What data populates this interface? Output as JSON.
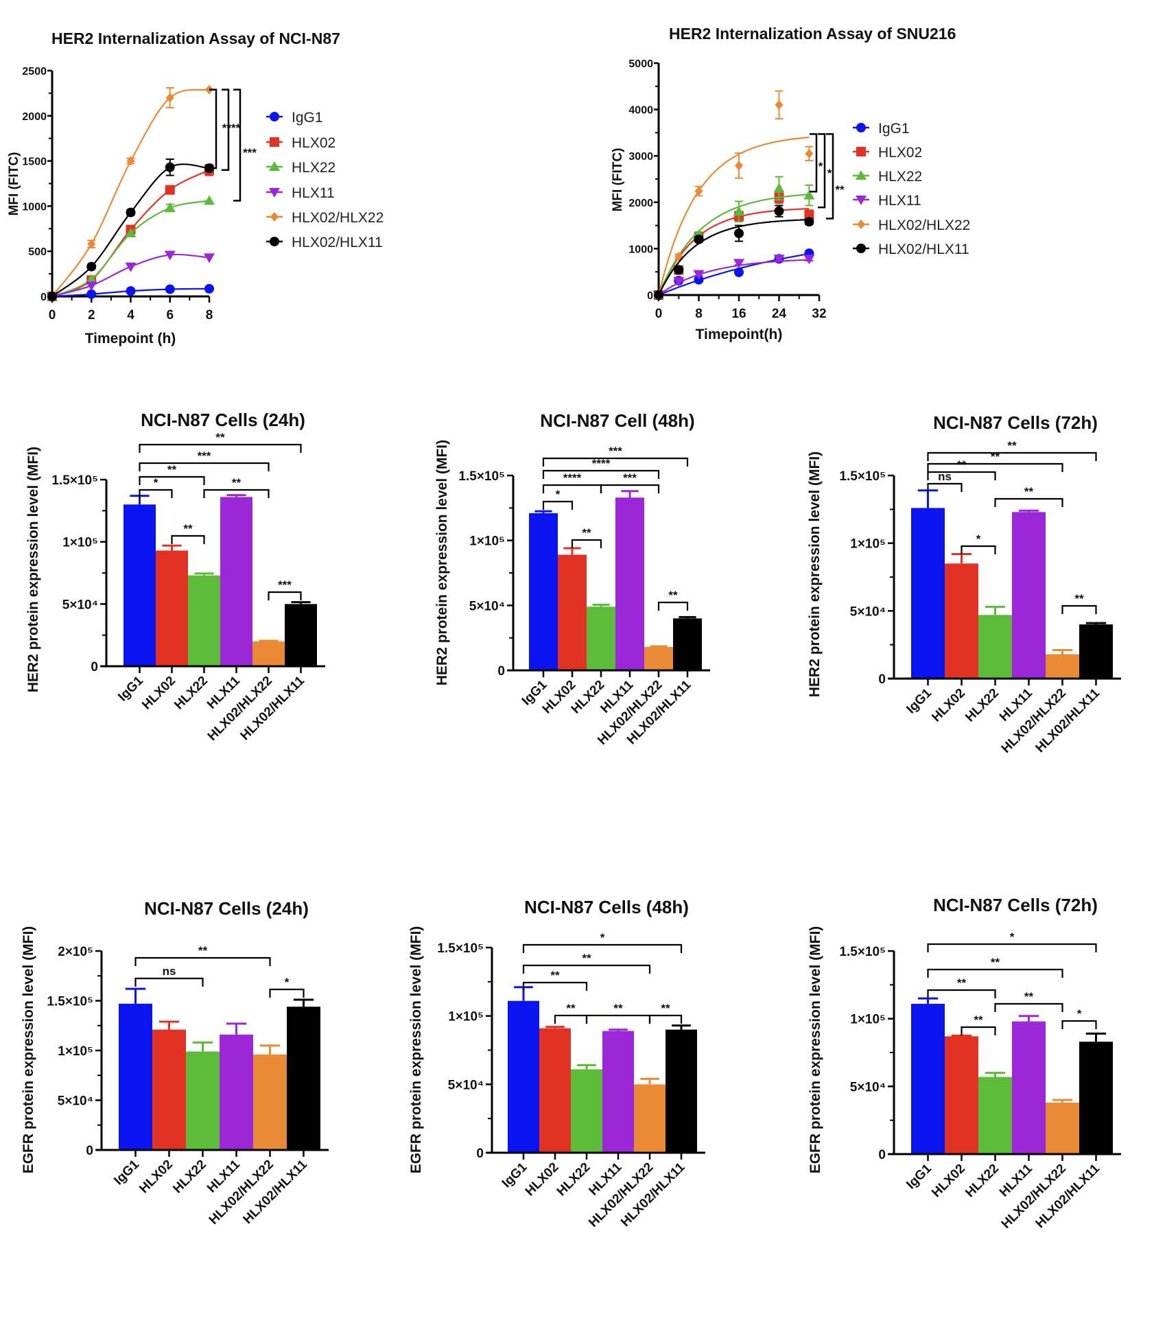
{
  "colors": {
    "IgG1": "#0a14f0",
    "HLX02": "#e23224",
    "HLX22": "#5dbb3a",
    "HLX11": "#9b27d8",
    "HLX02/HLX22": "#eb8a35",
    "HLX02/HLX11": "#000000"
  },
  "chart_data": [
    {
      "type": "line",
      "title": "HER2 Internalization Assay of NCI-N87",
      "xlabel": "Timepoint (h)",
      "ylabel": "MFI (FITC)",
      "xlim": [
        0,
        8
      ],
      "ylim": [
        0,
        2500
      ],
      "xticks": [
        "0",
        "2",
        "4",
        "6",
        "8"
      ],
      "yticks": [
        "0",
        "500",
        "1000",
        "1500",
        "2000",
        "2500"
      ],
      "legend": "right",
      "x": [
        0,
        2,
        4,
        6,
        8
      ],
      "series": [
        {
          "name": "IgG1",
          "marker": "circle",
          "values": [
            0,
            25,
            60,
            80,
            85
          ],
          "errors": [
            0,
            5,
            10,
            10,
            10
          ]
        },
        {
          "name": "HLX02",
          "marker": "square",
          "values": [
            0,
            180,
            740,
            1180,
            1400
          ],
          "errors": [
            0,
            20,
            30,
            40,
            60
          ]
        },
        {
          "name": "HLX22",
          "marker": "triangle-up",
          "values": [
            0,
            190,
            700,
            980,
            1060
          ],
          "errors": [
            0,
            15,
            20,
            40,
            20
          ]
        },
        {
          "name": "HLX11",
          "marker": "triangle-down",
          "values": [
            0,
            120,
            330,
            460,
            430
          ],
          "errors": [
            0,
            10,
            15,
            20,
            15
          ]
        },
        {
          "name": "HLX02/HLX22",
          "marker": "diamond",
          "values": [
            0,
            580,
            1500,
            2200,
            2290
          ],
          "errors": [
            0,
            40,
            30,
            110,
            20
          ]
        },
        {
          "name": "HLX02/HLX11",
          "marker": "circle",
          "values": [
            0,
            330,
            930,
            1430,
            1420
          ],
          "errors": [
            0,
            20,
            30,
            90,
            30
          ]
        }
      ],
      "significance": [
        {
          "label": "****",
          "from": "HLX02/HLX22",
          "to": "HLX02/HLX11"
        },
        {
          "label": "",
          "from": "HLX02/HLX22",
          "to": "HLX02"
        },
        {
          "label": "***",
          "from": "HLX02/HLX22",
          "to": "HLX22"
        }
      ]
    },
    {
      "type": "line",
      "title": "HER2 Internalization Assay of SNU216",
      "xlabel": "Timepoint(h)",
      "ylabel": "MFI (FITC)",
      "xlim": [
        0,
        32
      ],
      "ylim": [
        0,
        5000
      ],
      "xticks": [
        "0",
        "8",
        "16",
        "24",
        "32"
      ],
      "yticks": [
        "0",
        "1000",
        "2000",
        "3000",
        "4000",
        "5000"
      ],
      "legend": "right",
      "x": [
        0,
        4,
        8,
        16,
        24,
        30
      ],
      "series": [
        {
          "name": "IgG1",
          "marker": "circle",
          "values": [
            0,
            310,
            330,
            490,
            780,
            900
          ],
          "errors": [
            0,
            20,
            30,
            40,
            60,
            50
          ]
        },
        {
          "name": "HLX02",
          "marker": "square",
          "values": [
            0,
            540,
            1250,
            1700,
            2100,
            1730
          ],
          "errors": [
            0,
            40,
            60,
            100,
            120,
            100
          ]
        },
        {
          "name": "HLX22",
          "marker": "triangle-up",
          "values": [
            0,
            560,
            1300,
            1800,
            2300,
            2150
          ],
          "errors": [
            0,
            40,
            60,
            220,
            250,
            220
          ]
        },
        {
          "name": "HLX11",
          "marker": "triangle-down",
          "values": [
            0,
            300,
            450,
            690,
            780,
            780
          ],
          "errors": [
            0,
            20,
            30,
            40,
            40,
            40
          ]
        },
        {
          "name": "HLX02/HLX22",
          "marker": "diamond",
          "values": [
            0,
            830,
            2240,
            2790,
            4100,
            3050
          ],
          "errors": [
            0,
            50,
            100,
            270,
            300,
            150
          ]
        },
        {
          "name": "HLX02/HLX11",
          "marker": "circle",
          "values": [
            0,
            540,
            1200,
            1330,
            1810,
            1580
          ],
          "errors": [
            0,
            40,
            60,
            170,
            120,
            60
          ]
        }
      ],
      "significance": [
        {
          "label": "*",
          "from": "HLX02/HLX22",
          "to": "HLX22"
        },
        {
          "label": "*",
          "from": "HLX02/HLX22",
          "to": "HLX02"
        },
        {
          "label": "**",
          "from": "HLX02/HLX22",
          "to": "HLX02/HLX11"
        }
      ]
    },
    {
      "type": "bar",
      "title": "NCI-N87 Cells (24h)",
      "ylabel": "HER2  protein expression level (MFI)",
      "categories": [
        "IgG1",
        "HLX02",
        "HLX22",
        "HLX11",
        "HLX02/HLX22",
        "HLX02/HLX11"
      ],
      "values": [
        130000,
        93000,
        73000,
        136000,
        20000,
        50000
      ],
      "errors": [
        7000,
        4000,
        1500,
        1500,
        500,
        1500
      ],
      "ylim": [
        0,
        150000
      ],
      "yticks": [
        {
          "v": 0,
          "label": "0"
        },
        {
          "v": 50000,
          "label": "5×10⁴"
        },
        {
          "v": 100000,
          "label": "1×10⁵"
        },
        {
          "v": 150000,
          "label": "1.5×10⁵"
        }
      ],
      "significance": [
        {
          "pair": [
            0,
            5
          ],
          "label": "**"
        },
        {
          "pair": [
            0,
            4
          ],
          "label": "***"
        },
        {
          "pair": [
            0,
            2
          ],
          "label": "**"
        },
        {
          "pair": [
            0,
            1
          ],
          "label": "*"
        },
        {
          "pair": [
            2,
            4
          ],
          "label": "**"
        },
        {
          "pair": [
            1,
            2
          ],
          "label": "**"
        },
        {
          "pair": [
            4,
            5
          ],
          "label": "***"
        }
      ]
    },
    {
      "type": "bar",
      "title": "NCI-N87 Cell (48h)",
      "ylabel": "HER2  protein expression level (MFI)",
      "categories": [
        "IgG1",
        "HLX02",
        "HLX22",
        "HLX11",
        "HLX02/HLX22",
        "HLX02/HLX11"
      ],
      "values": [
        121000,
        89000,
        49000,
        133000,
        18000,
        40000
      ],
      "errors": [
        1500,
        5000,
        1500,
        5000,
        500,
        1000
      ],
      "ylim": [
        0,
        150000
      ],
      "yticks": [
        {
          "v": 0,
          "label": "0"
        },
        {
          "v": 50000,
          "label": "5×10⁴"
        },
        {
          "v": 100000,
          "label": "1×10⁵"
        },
        {
          "v": 150000,
          "label": "1.5×10⁵"
        }
      ],
      "significance": [
        {
          "pair": [
            0,
            5
          ],
          "label": "***"
        },
        {
          "pair": [
            0,
            4
          ],
          "label": "****"
        },
        {
          "pair": [
            0,
            2
          ],
          "label": "****"
        },
        {
          "pair": [
            2,
            4
          ],
          "label": "***"
        },
        {
          "pair": [
            0,
            1
          ],
          "label": "*"
        },
        {
          "pair": [
            1,
            2
          ],
          "label": "**"
        },
        {
          "pair": [
            4,
            5
          ],
          "label": "**"
        }
      ]
    },
    {
      "type": "bar",
      "title": "NCI-N87 Cells (72h)",
      "ylabel": "HER2  protein expression level (MFI)",
      "categories": [
        "IgG1",
        "HLX02",
        "HLX22",
        "HLX11",
        "HLX02/HLX22",
        "HLX02/HLX11"
      ],
      "values": [
        126000,
        85000,
        47000,
        123000,
        18000,
        40000
      ],
      "errors": [
        13000,
        7000,
        6000,
        1000,
        3000,
        1000
      ],
      "ylim": [
        0,
        150000
      ],
      "yticks": [
        {
          "v": 0,
          "label": "0"
        },
        {
          "v": 50000,
          "label": "5×10⁴"
        },
        {
          "v": 100000,
          "label": "1×10⁵"
        },
        {
          "v": 150000,
          "label": "1.5×10⁵"
        }
      ],
      "significance": [
        {
          "pair": [
            0,
            5
          ],
          "label": "**"
        },
        {
          "pair": [
            0,
            4
          ],
          "label": "**"
        },
        {
          "pair": [
            0,
            2
          ],
          "label": "**"
        },
        {
          "pair": [
            0,
            1
          ],
          "label": "ns"
        },
        {
          "pair": [
            2,
            4
          ],
          "label": "**"
        },
        {
          "pair": [
            1,
            2
          ],
          "label": "*"
        },
        {
          "pair": [
            4,
            5
          ],
          "label": "**"
        }
      ]
    },
    {
      "type": "bar",
      "title": "NCI-N87 Cells (24h)",
      "ylabel": "EGFR protein expression level (MFI)",
      "categories": [
        "IgG1",
        "HLX02",
        "HLX22",
        "HLX11",
        "HLX02/HLX22",
        "HLX02/HLX11"
      ],
      "values": [
        147000,
        121000,
        99000,
        116000,
        96000,
        144000
      ],
      "errors": [
        15000,
        8000,
        9000,
        11000,
        9000,
        7000
      ],
      "ylim": [
        0,
        200000
      ],
      "yticks": [
        {
          "v": 0,
          "label": "0"
        },
        {
          "v": 50000,
          "label": "5×10⁴"
        },
        {
          "v": 100000,
          "label": "1×10⁵"
        },
        {
          "v": 150000,
          "label": "1.5×10⁵"
        },
        {
          "v": 200000,
          "label": "2×10⁵"
        }
      ],
      "significance": [
        {
          "pair": [
            0,
            4
          ],
          "label": "**"
        },
        {
          "pair": [
            0,
            2
          ],
          "label": "ns"
        },
        {
          "pair": [
            4,
            5
          ],
          "label": "*"
        }
      ]
    },
    {
      "type": "bar",
      "title": "NCI-N87 Cells (48h)",
      "ylabel": "EGFR protein expression level (MFI)",
      "categories": [
        "IgG1",
        "HLX02",
        "HLX22",
        "HLX11",
        "HLX02/HLX22",
        "HLX02/HLX11"
      ],
      "values": [
        111000,
        91000,
        61000,
        89000,
        50000,
        90000
      ],
      "errors": [
        10000,
        1000,
        3000,
        1000,
        4000,
        3000
      ],
      "ylim": [
        0,
        150000
      ],
      "yticks": [
        {
          "v": 0,
          "label": "0"
        },
        {
          "v": 50000,
          "label": "5×10⁴"
        },
        {
          "v": 100000,
          "label": "1×10⁵"
        },
        {
          "v": 150000,
          "label": "1.5×10⁵"
        }
      ],
      "significance": [
        {
          "pair": [
            0,
            5
          ],
          "label": "*"
        },
        {
          "pair": [
            0,
            4
          ],
          "label": "**"
        },
        {
          "pair": [
            0,
            2
          ],
          "label": "**"
        },
        {
          "pair": [
            1,
            2
          ],
          "label": "**"
        },
        {
          "pair": [
            2,
            4
          ],
          "label": "**"
        },
        {
          "pair": [
            4,
            5
          ],
          "label": "**"
        }
      ]
    },
    {
      "type": "bar",
      "title": "NCI-N87 Cells (72h)",
      "ylabel": "EGFR protein expression level (MFI)",
      "categories": [
        "IgG1",
        "HLX02",
        "HLX22",
        "HLX11",
        "HLX02/HLX22",
        "HLX02/HLX11"
      ],
      "values": [
        111000,
        87000,
        57000,
        98000,
        38000,
        83000
      ],
      "errors": [
        4000,
        500,
        3000,
        4000,
        2000,
        6000
      ],
      "ylim": [
        0,
        150000
      ],
      "yticks": [
        {
          "v": 0,
          "label": "0"
        },
        {
          "v": 50000,
          "label": "5×10⁴"
        },
        {
          "v": 100000,
          "label": "1×10⁵"
        },
        {
          "v": 150000,
          "label": "1.5×10⁵"
        }
      ],
      "significance": [
        {
          "pair": [
            0,
            5
          ],
          "label": "*"
        },
        {
          "pair": [
            0,
            4
          ],
          "label": "**"
        },
        {
          "pair": [
            0,
            2
          ],
          "label": "**"
        },
        {
          "pair": [
            2,
            4
          ],
          "label": "**"
        },
        {
          "pair": [
            1,
            2
          ],
          "label": "**"
        },
        {
          "pair": [
            4,
            5
          ],
          "label": "*"
        }
      ]
    }
  ]
}
